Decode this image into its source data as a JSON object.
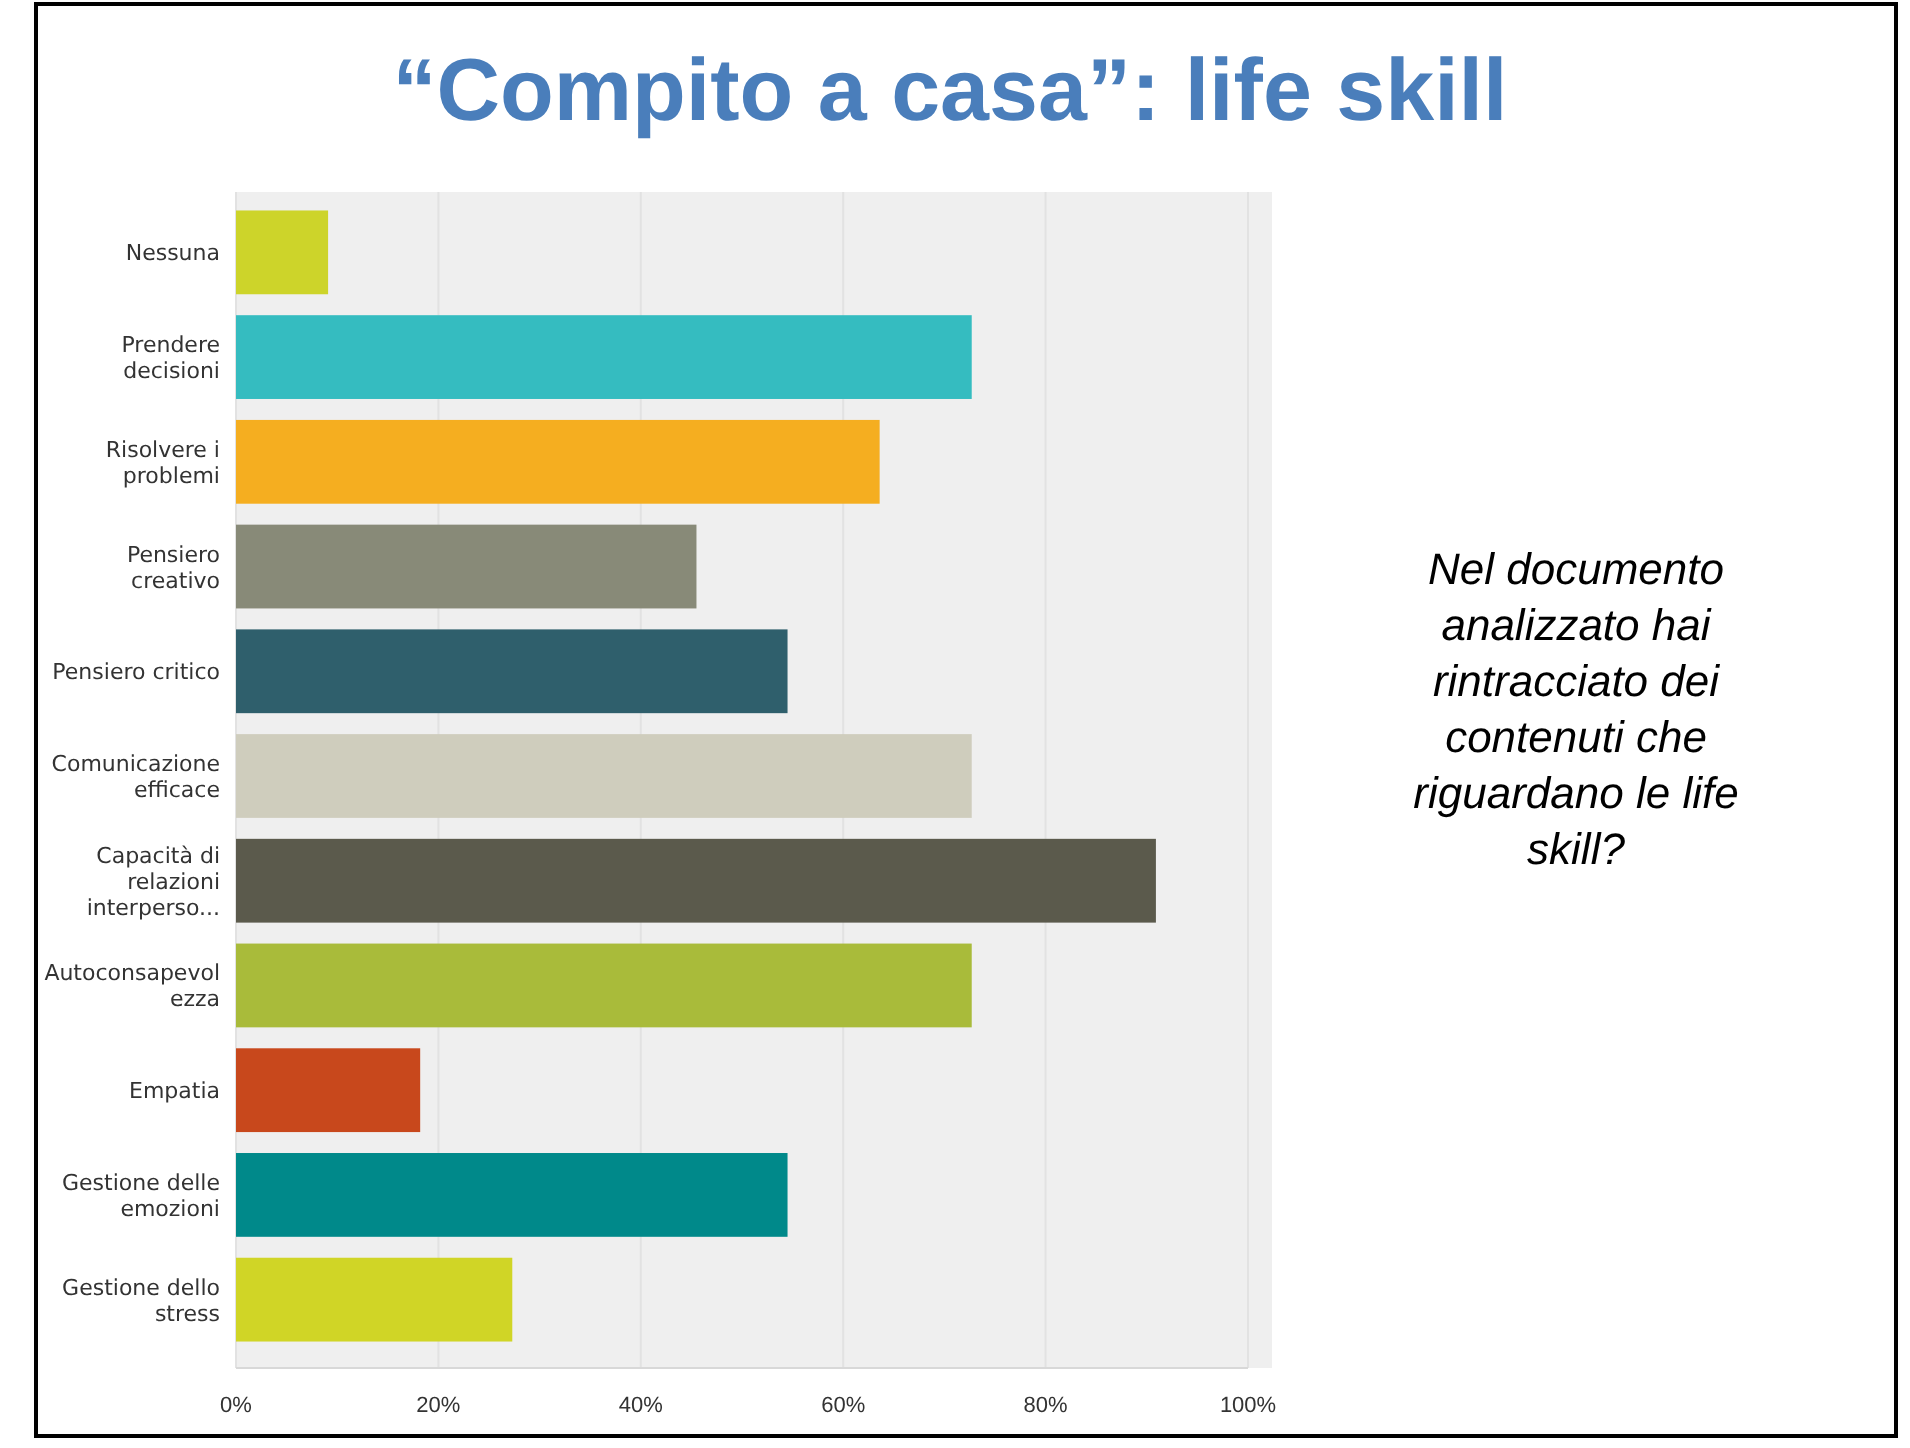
{
  "chart_data": {
    "type": "bar",
    "orientation": "horizontal",
    "title": "“Compito a casa”: life skill",
    "categories": [
      "Nessuna",
      "Prendere decisioni",
      "Risolvere i problemi",
      "Pensiero creativo",
      "Pensiero critico",
      "Comunicazione efficace",
      "Capacità di relazioni interperso...",
      "Autoconsapevolezza",
      "Empatia",
      "Gestione delle emozioni",
      "Gestione dello stress"
    ],
    "values": [
      9.1,
      72.7,
      63.6,
      45.5,
      54.5,
      72.7,
      90.9,
      72.7,
      18.2,
      54.5,
      27.3
    ],
    "colors": [
      "#cdd42a",
      "#35bcc0",
      "#f5ae20",
      "#888a78",
      "#2f5f6c",
      "#cfcdbd",
      "#5b5a4c",
      "#a9bb3a",
      "#c8481c",
      "#00898a",
      "#d0d526"
    ],
    "xlim": [
      0,
      100
    ],
    "xticks": [
      {
        "value": 0,
        "label": "0%"
      },
      {
        "value": 20,
        "label": "20%"
      },
      {
        "value": 40,
        "label": "40%"
      },
      {
        "value": 60,
        "label": "60%"
      },
      {
        "value": 80,
        "label": "80%"
      },
      {
        "value": 100,
        "label": "100%"
      }
    ],
    "grid": "x",
    "annotations": [
      "Nel documento analizzato hai rintracciato dei contenuti che riguardano le life skill?"
    ]
  }
}
